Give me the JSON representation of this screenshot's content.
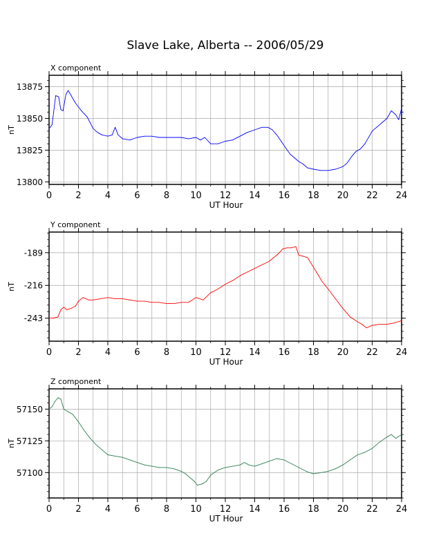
{
  "page": {
    "title": "Slave Lake, Alberta -- 2006/05/29"
  },
  "chart_data": [
    {
      "type": "line",
      "title": "X component",
      "xlabel": "UT Hour",
      "ylabel": "nT",
      "xlim": [
        0,
        24
      ],
      "ylim": [
        13798,
        13884
      ],
      "xticks": [
        0,
        2,
        4,
        6,
        8,
        10,
        12,
        14,
        16,
        18,
        20,
        22,
        24
      ],
      "yticks": [
        13800,
        13825,
        13850,
        13875
      ],
      "grid": true,
      "color": "#0000ff",
      "series": [
        {
          "x": [
            0.0,
            0.2,
            0.45,
            0.65,
            0.8,
            0.95,
            1.15,
            1.3,
            1.5,
            1.8,
            2.2,
            2.6,
            3.0,
            3.3,
            3.6,
            4.0,
            4.3,
            4.5,
            4.7,
            5.0,
            5.5,
            6.0,
            6.5,
            7.0,
            7.5,
            8.0,
            8.5,
            9.0,
            9.5,
            10.0,
            10.3,
            10.6,
            11.0,
            11.5,
            12.0,
            12.5,
            13.0,
            13.5,
            14.0,
            14.5,
            14.9,
            15.2,
            15.5,
            15.8,
            16.1,
            16.4,
            16.7,
            17.0,
            17.3,
            17.6,
            18.0,
            18.5,
            19.0,
            19.5,
            20.0,
            20.3,
            20.6,
            20.9,
            21.2,
            21.5,
            21.8,
            22.0,
            22.3,
            22.7,
            23.0,
            23.3,
            23.6,
            23.8,
            24.0
          ],
          "y": [
            13842,
            13845,
            13868,
            13867,
            13857,
            13856,
            13869,
            13872,
            13868,
            13862,
            13856,
            13851,
            13842,
            13839,
            13837,
            13836,
            13837,
            13843,
            13837,
            13834,
            13833,
            13835,
            13836,
            13836,
            13835,
            13835,
            13835,
            13835,
            13834,
            13835,
            13833,
            13835,
            13830,
            13830,
            13832,
            13833,
            13836,
            13839,
            13841,
            13843,
            13843,
            13841,
            13837,
            13832,
            13827,
            13822,
            13819,
            13816,
            13814,
            13811,
            13810,
            13809,
            13809,
            13810,
            13812,
            13815,
            13820,
            13824,
            13826,
            13830,
            13836,
            13840,
            13843,
            13847,
            13850,
            13856,
            13853,
            13849,
            13858
          ]
        }
      ]
    },
    {
      "type": "line",
      "title": "Y component",
      "xlabel": "UT Hour",
      "ylabel": "nT",
      "xlim": [
        0,
        24
      ],
      "ylim": [
        -262,
        -172
      ],
      "xticks": [
        0,
        2,
        4,
        6,
        8,
        10,
        12,
        14,
        16,
        18,
        20,
        22,
        24
      ],
      "yticks": [
        -243,
        -216,
        -189
      ],
      "grid": true,
      "color": "#ff0000",
      "series": [
        {
          "x": [
            0.0,
            0.3,
            0.6,
            0.8,
            1.0,
            1.2,
            1.5,
            1.8,
            2.0,
            2.3,
            2.7,
            3.0,
            3.5,
            4.0,
            4.5,
            5.0,
            5.5,
            6.0,
            6.5,
            7.0,
            7.5,
            8.0,
            8.5,
            9.0,
            9.5,
            10.0,
            10.5,
            11.0,
            11.5,
            12.0,
            12.5,
            13.0,
            13.5,
            14.0,
            14.5,
            15.0,
            15.3,
            15.6,
            15.9,
            16.2,
            16.5,
            16.8,
            17.0,
            17.3,
            17.6,
            18.0,
            18.3,
            18.6,
            19.0,
            19.5,
            20.0,
            20.5,
            21.0,
            21.3,
            21.6,
            22.0,
            22.5,
            23.0,
            23.5,
            24.0
          ],
          "y": [
            -243,
            -243,
            -242,
            -236,
            -234,
            -236,
            -235,
            -233,
            -229,
            -226,
            -228,
            -228,
            -227,
            -226,
            -227,
            -227,
            -228,
            -229,
            -229,
            -230,
            -230,
            -231,
            -231,
            -230,
            -230,
            -226,
            -228,
            -222,
            -219,
            -215,
            -212,
            -208,
            -205,
            -202,
            -199,
            -196,
            -193,
            -190,
            -186,
            -185,
            -185,
            -184,
            -191,
            -192,
            -193,
            -201,
            -207,
            -213,
            -219,
            -227,
            -235,
            -242,
            -246,
            -248,
            -251,
            -249,
            -248,
            -248,
            -247,
            -245
          ]
        }
      ]
    },
    {
      "type": "line",
      "title": "Z component",
      "xlabel": "UT Hour",
      "ylabel": "nT",
      "xlim": [
        0,
        24
      ],
      "ylim": [
        57080,
        57166
      ],
      "xticks": [
        0,
        2,
        4,
        6,
        8,
        10,
        12,
        14,
        16,
        18,
        20,
        22,
        24
      ],
      "yticks": [
        57100,
        57125,
        57150
      ],
      "grid": true,
      "color": "#2e7d4f",
      "series": [
        {
          "x": [
            0.0,
            0.2,
            0.4,
            0.6,
            0.8,
            1.0,
            1.3,
            1.6,
            2.0,
            2.4,
            2.8,
            3.2,
            3.6,
            4.0,
            4.5,
            5.0,
            5.5,
            6.0,
            6.5,
            7.0,
            7.5,
            8.0,
            8.5,
            9.0,
            9.3,
            9.6,
            9.9,
            10.1,
            10.4,
            10.7,
            11.0,
            11.5,
            12.0,
            12.5,
            13.0,
            13.3,
            13.6,
            14.0,
            14.5,
            15.0,
            15.5,
            16.0,
            16.5,
            17.0,
            17.5,
            18.0,
            18.5,
            19.0,
            19.5,
            20.0,
            20.5,
            21.0,
            21.5,
            22.0,
            22.5,
            23.0,
            23.3,
            23.6,
            24.0
          ],
          "y": [
            57150,
            57152,
            57156,
            57159,
            57158,
            57150,
            57148,
            57146,
            57140,
            57133,
            57127,
            57122,
            57118,
            57114,
            57113,
            57112,
            57110,
            57108,
            57106,
            57105,
            57104,
            57104,
            57103,
            57101,
            57099,
            57096,
            57093,
            57090,
            57091,
            57093,
            57098,
            57102,
            57104,
            57105,
            57106,
            57108,
            57106,
            57105,
            57107,
            57109,
            57111,
            57110,
            57107,
            57104,
            57101,
            57099,
            57100,
            57101,
            57103,
            57106,
            57110,
            57114,
            57116,
            57119,
            57124,
            57128,
            57130,
            57127,
            57130
          ]
        }
      ]
    }
  ]
}
